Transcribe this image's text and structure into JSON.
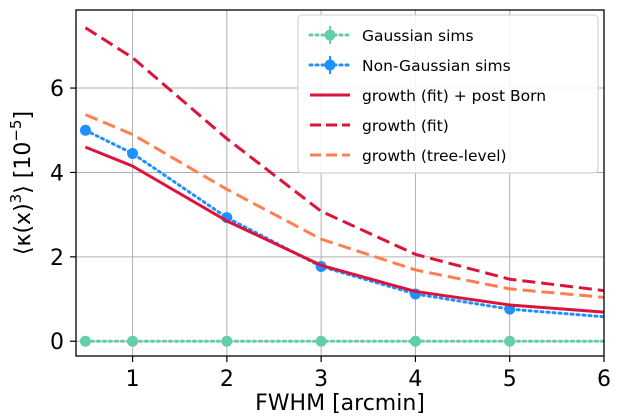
{
  "chart_data": {
    "type": "line",
    "xlabel": "FWHM [arcmin]",
    "ylabel_parts": {
      "pre": "⟨κ(x)",
      "sup": "3",
      "post": "⟩ [10",
      "sup2": "−5",
      "end": "]"
    },
    "xlim": [
      0.4,
      6.0
    ],
    "ylim": [
      -0.35,
      7.85
    ],
    "xticks": [
      1,
      2,
      3,
      4,
      5,
      6
    ],
    "xtick_labels": [
      "1",
      "2",
      "3",
      "4",
      "5",
      "6"
    ],
    "yticks": [
      0,
      2,
      4,
      6
    ],
    "ytick_labels": [
      "0",
      "2",
      "4",
      "6"
    ],
    "grid": true,
    "legend_placement": "top-right",
    "series": [
      {
        "name": "Gaussian sims",
        "style": "dotted-markers",
        "color": "#66cdaa",
        "x": [
          0.5,
          1,
          2,
          3,
          4,
          5,
          6
        ],
        "y": [
          0,
          0,
          0,
          0,
          0,
          0,
          0
        ],
        "marker_x": [
          0.5,
          1,
          2,
          3,
          4,
          5
        ]
      },
      {
        "name": "Non-Gaussian sims",
        "style": "dotted-markers",
        "color": "#1e90ff",
        "x": [
          0.5,
          1,
          2,
          3,
          4,
          5,
          6
        ],
        "y": [
          5.0,
          4.45,
          2.93,
          1.77,
          1.12,
          0.76,
          0.58
        ],
        "marker_x": [
          0.5,
          1,
          2,
          3,
          4,
          5
        ]
      },
      {
        "name": "growth (fit) + post Born",
        "style": "solid",
        "color": "#dc143c",
        "x": [
          0.5,
          1,
          2,
          3,
          4,
          5,
          6
        ],
        "y": [
          4.6,
          4.15,
          2.85,
          1.8,
          1.18,
          0.86,
          0.69
        ]
      },
      {
        "name": "growth (fit)",
        "style": "dashed",
        "color": "#dc143c",
        "x": [
          0.5,
          1,
          2,
          3,
          4,
          5,
          6
        ],
        "y": [
          7.43,
          6.72,
          4.8,
          3.08,
          2.06,
          1.47,
          1.2
        ]
      },
      {
        "name": "growth (tree-level)",
        "style": "dashed",
        "color": "#ff7f50",
        "x": [
          0.5,
          1,
          2,
          3,
          4,
          5,
          6
        ],
        "y": [
          5.37,
          4.9,
          3.6,
          2.42,
          1.69,
          1.24,
          1.04
        ]
      }
    ]
  }
}
